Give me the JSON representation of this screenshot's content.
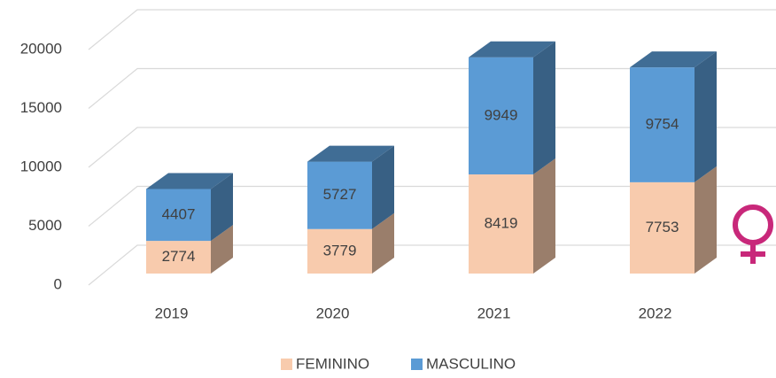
{
  "chart_data": {
    "type": "bar3d_stacked",
    "categories": [
      "2019",
      "2020",
      "2021",
      "2022"
    ],
    "series": [
      {
        "name": "FEMININO",
        "color": "#f8cbad",
        "values": [
          2774,
          3779,
          8419,
          7753
        ]
      },
      {
        "name": "MASCULINO",
        "color": "#5b9bd5",
        "values": [
          4407,
          5727,
          9949,
          9754
        ]
      }
    ],
    "ylim": [
      0,
      20000
    ],
    "yticks": [
      0,
      5000,
      10000,
      15000,
      20000
    ],
    "grid": true,
    "legend": "bottom"
  }
}
